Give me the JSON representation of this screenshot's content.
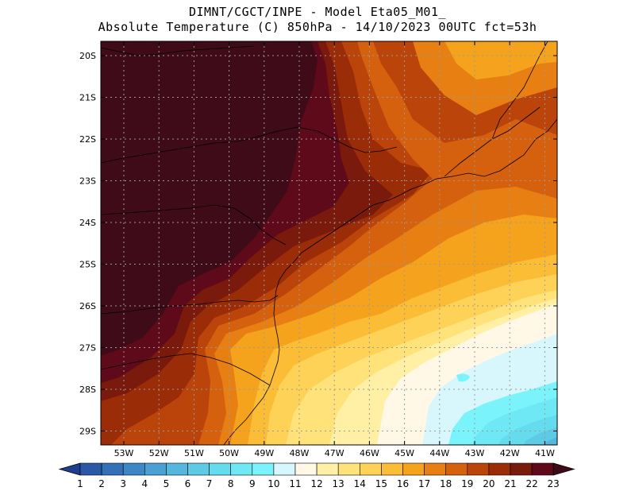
{
  "title_line1": "DIMNT/CGCT/INPE -  Model Eta05_M01_",
  "title_line2": "Absolute Temperature (C) 850hPa -  14/10/2023 00UTC fct=53h",
  "y_ticks": [
    "20S",
    "21S",
    "22S",
    "23S",
    "24S",
    "25S",
    "26S",
    "27S",
    "28S",
    "29S"
  ],
  "x_ticks": [
    "53W",
    "52W",
    "51W",
    "50W",
    "49W",
    "48W",
    "47W",
    "46W",
    "45W",
    "44W",
    "43W",
    "42W",
    "41W"
  ],
  "colorbar": {
    "labels": [
      "1",
      "2",
      "3",
      "4",
      "5",
      "6",
      "7",
      "8",
      "9",
      "10",
      "11",
      "12",
      "13",
      "14",
      "15",
      "16",
      "17",
      "18",
      "19",
      "20",
      "21",
      "22",
      "23"
    ],
    "colors": [
      "#1f3f8e",
      "#2a58a6",
      "#3370b8",
      "#3e87c6",
      "#4aa0d2",
      "#55b7dd",
      "#5ecbe6",
      "#65dbee",
      "#6de8f4",
      "#7bf3fb",
      "#d7f7fd",
      "#fff8e6",
      "#fff0a6",
      "#ffe37a",
      "#fdd257",
      "#fbbd36",
      "#f5a21c",
      "#e77f13",
      "#d5600e",
      "#bb440b",
      "#9b2c08",
      "#7a1a0c",
      "#5e0a1a",
      "#3f0b18"
    ]
  },
  "map": {
    "extent": {
      "lon": [
        -53.7,
        -40.6
      ],
      "lat": [
        -29.4,
        -19.8
      ]
    },
    "temperature_zones_c": [
      {
        "value": 22.5,
        "region": "west interior"
      },
      {
        "value": 21.5,
        "region": "interior edge"
      },
      {
        "value": 20.5,
        "region": "coastal slope"
      },
      {
        "value": 19.5,
        "region": "coastal plain"
      },
      {
        "value": 18.5,
        "region": "near shore"
      },
      {
        "value": 17.5,
        "region": "northeast land"
      },
      {
        "value": 16.5,
        "region": "coastal ocean"
      },
      {
        "value": 15.5,
        "region": "ocean band"
      },
      {
        "value": 14.5,
        "region": "ocean band"
      },
      {
        "value": 13.5,
        "region": "ocean band"
      },
      {
        "value": 12.5,
        "region": "ocean band"
      },
      {
        "value": 11.5,
        "region": "southeast ocean"
      },
      {
        "value": 10.5,
        "region": "southeast ocean"
      },
      {
        "value": 9.5,
        "region": "southeast ocean"
      },
      {
        "value": 8.5,
        "region": "southeast ocean"
      }
    ]
  }
}
